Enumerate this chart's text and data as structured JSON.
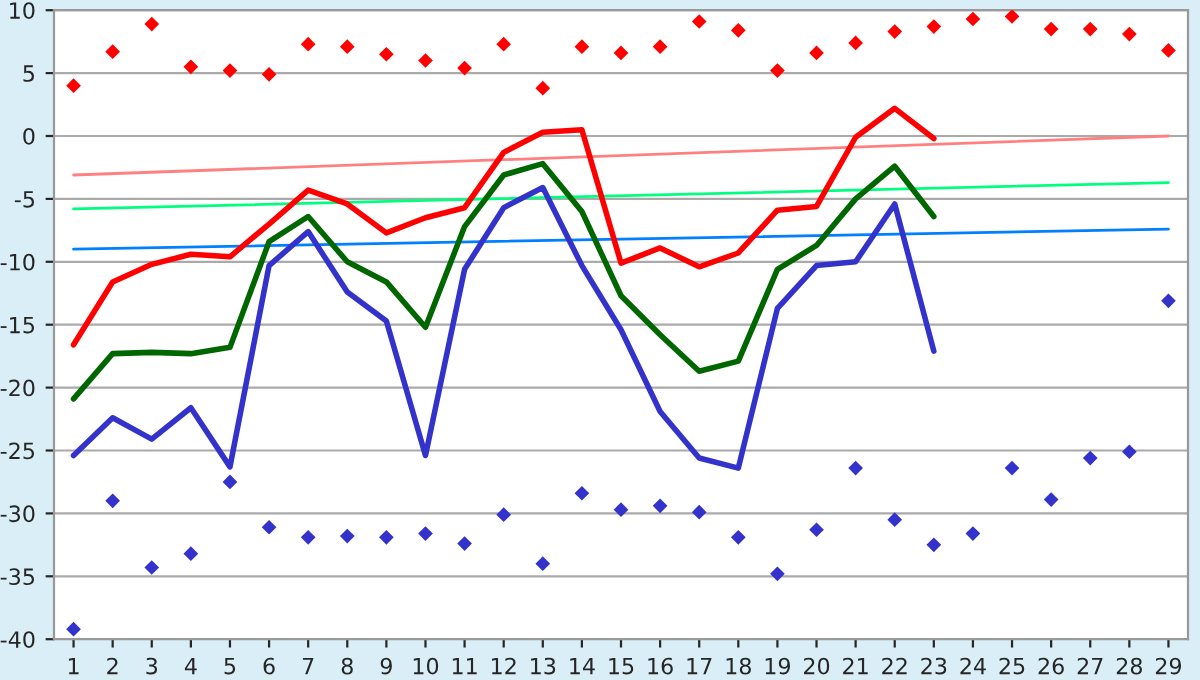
{
  "chart_data": {
    "type": "line",
    "xlim": [
      0.5,
      29.5
    ],
    "xticks": [
      1,
      2,
      3,
      4,
      5,
      6,
      7,
      8,
      9,
      10,
      11,
      12,
      13,
      14,
      15,
      16,
      17,
      18,
      19,
      20,
      21,
      22,
      23,
      24,
      25,
      26,
      27,
      28,
      29
    ],
    "ylim": [
      -40,
      10
    ],
    "yticks": [
      -40,
      -35,
      -30,
      -25,
      -20,
      -15,
      -10,
      -5,
      0,
      5,
      10
    ],
    "grid": "y",
    "series": [
      {
        "color": "#ff8080",
        "x": [
          1,
          29
        ],
        "values": [
          -3.1,
          0.0
        ]
      },
      {
        "color": "#00ff80",
        "x": [
          1,
          29
        ],
        "values": [
          -5.8,
          -3.7
        ]
      },
      {
        "color": "#0080ff",
        "x": [
          1,
          29
        ],
        "values": [
          -9.0,
          -7.4
        ]
      },
      {
        "type": "scatter",
        "marker": "diamond",
        "color": "#ff0000",
        "x": [
          1,
          2,
          3,
          4,
          5,
          6,
          7,
          8,
          9,
          10,
          11,
          12,
          13,
          14,
          15,
          16,
          17,
          18,
          19,
          20,
          21,
          22,
          23,
          24,
          25,
          26,
          27,
          28,
          29
        ],
        "values": [
          4.0,
          6.7,
          8.9,
          5.5,
          5.2,
          4.9,
          7.3,
          7.1,
          6.5,
          6.0,
          5.4,
          7.3,
          3.8,
          7.1,
          6.6,
          7.1,
          9.1,
          8.4,
          5.2,
          6.6,
          7.4,
          8.3,
          8.7,
          9.3,
          9.5,
          8.5,
          8.5,
          8.1,
          6.8
        ]
      },
      {
        "type": "scatter",
        "marker": "diamond",
        "color": "#3333cc",
        "x": [
          1,
          2,
          3,
          4,
          5,
          6,
          7,
          8,
          9,
          10,
          11,
          12,
          13,
          14,
          15,
          16,
          17,
          18,
          19,
          20,
          21,
          22,
          23,
          24,
          25,
          26,
          27,
          28,
          29
        ],
        "values": [
          -39.2,
          -29.0,
          -34.3,
          -33.2,
          -27.5,
          -31.1,
          -31.9,
          -31.8,
          -31.9,
          -31.6,
          -32.4,
          -30.1,
          -34.0,
          -28.4,
          -29.7,
          -29.4,
          -29.9,
          -31.9,
          -34.8,
          -31.3,
          -26.4,
          -30.5,
          -32.5,
          -31.6,
          -26.4,
          -28.9,
          -25.6,
          -25.1,
          -13.1
        ]
      },
      {
        "color": "#ff0000",
        "x": [
          1,
          2,
          3,
          4,
          5,
          6,
          7,
          8,
          9,
          10,
          11,
          12,
          13,
          14,
          15,
          16,
          17,
          18,
          19,
          20,
          21,
          22,
          23
        ],
        "values": [
          -16.6,
          -11.6,
          -10.2,
          -9.4,
          -9.6,
          -7.0,
          -4.3,
          -5.4,
          -7.7,
          -6.5,
          -5.7,
          -1.3,
          0.3,
          0.5,
          -10.1,
          -8.9,
          -10.4,
          -9.3,
          -5.9,
          -5.6,
          -0.1,
          2.2,
          -0.2
        ]
      },
      {
        "color": "#006600",
        "x": [
          1,
          2,
          3,
          4,
          5,
          6,
          7,
          8,
          9,
          10,
          11,
          12,
          13,
          14,
          15,
          16,
          17,
          18,
          19,
          20,
          21,
          22,
          23
        ],
        "values": [
          -20.9,
          -17.3,
          -17.2,
          -17.3,
          -16.8,
          -8.4,
          -6.4,
          -10.0,
          -11.6,
          -15.2,
          -7.2,
          -3.1,
          -2.2,
          -6.0,
          -12.7,
          -15.8,
          -18.7,
          -17.9,
          -10.6,
          -8.7,
          -5.0,
          -2.4,
          -6.4
        ]
      },
      {
        "color": "#3333cc",
        "x": [
          1,
          2,
          3,
          4,
          5,
          6,
          7,
          8,
          9,
          10,
          11,
          12,
          13,
          14,
          15,
          16,
          17,
          18,
          19,
          20,
          21,
          22,
          23
        ],
        "values": [
          -25.4,
          -22.4,
          -24.1,
          -21.6,
          -26.3,
          -10.3,
          -7.6,
          -12.4,
          -14.7,
          -25.4,
          -10.6,
          -5.7,
          -4.1,
          -10.3,
          -15.4,
          -21.9,
          -25.6,
          -26.4,
          -13.7,
          -10.3,
          -10.0,
          -5.4,
          -17.1
        ]
      }
    ]
  }
}
